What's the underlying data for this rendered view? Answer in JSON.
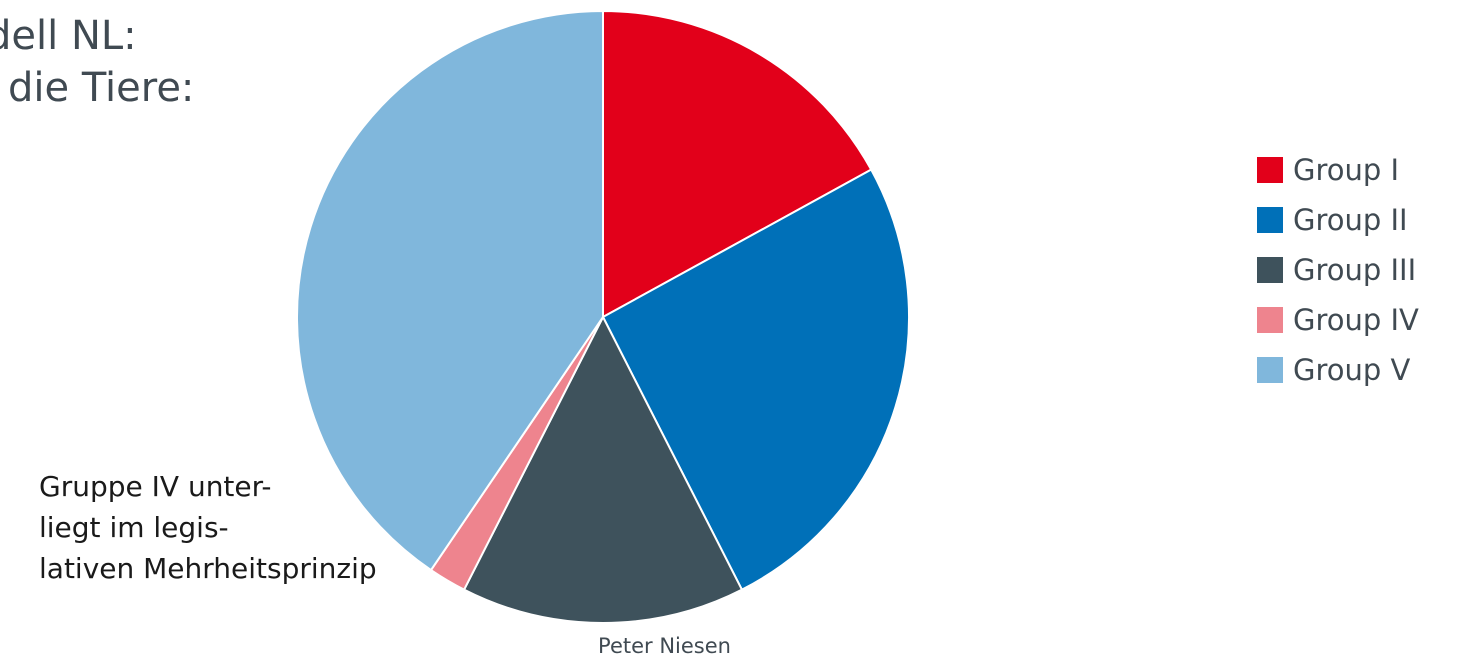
{
  "slide": {
    "title_line1": "dell NL:",
    "title_line2": "die Tiere:",
    "annotation_lines": [
      "Gruppe IV unter-",
      "liegt im legis-",
      "lativen Mehrheitsprinzip"
    ],
    "footer": "Peter Niesen"
  },
  "chart_data": {
    "type": "pie",
    "categories": [
      "Group I",
      "Group II",
      "Group III",
      "Group IV",
      "Group V"
    ],
    "values": [
      17,
      25.5,
      15,
      2,
      40.5
    ],
    "colors": [
      "#e2001a",
      "#0070b8",
      "#3e525c",
      "#ee848e",
      "#80b7dc"
    ],
    "legend_position": "right",
    "start": "top",
    "direction": "clockwise"
  }
}
